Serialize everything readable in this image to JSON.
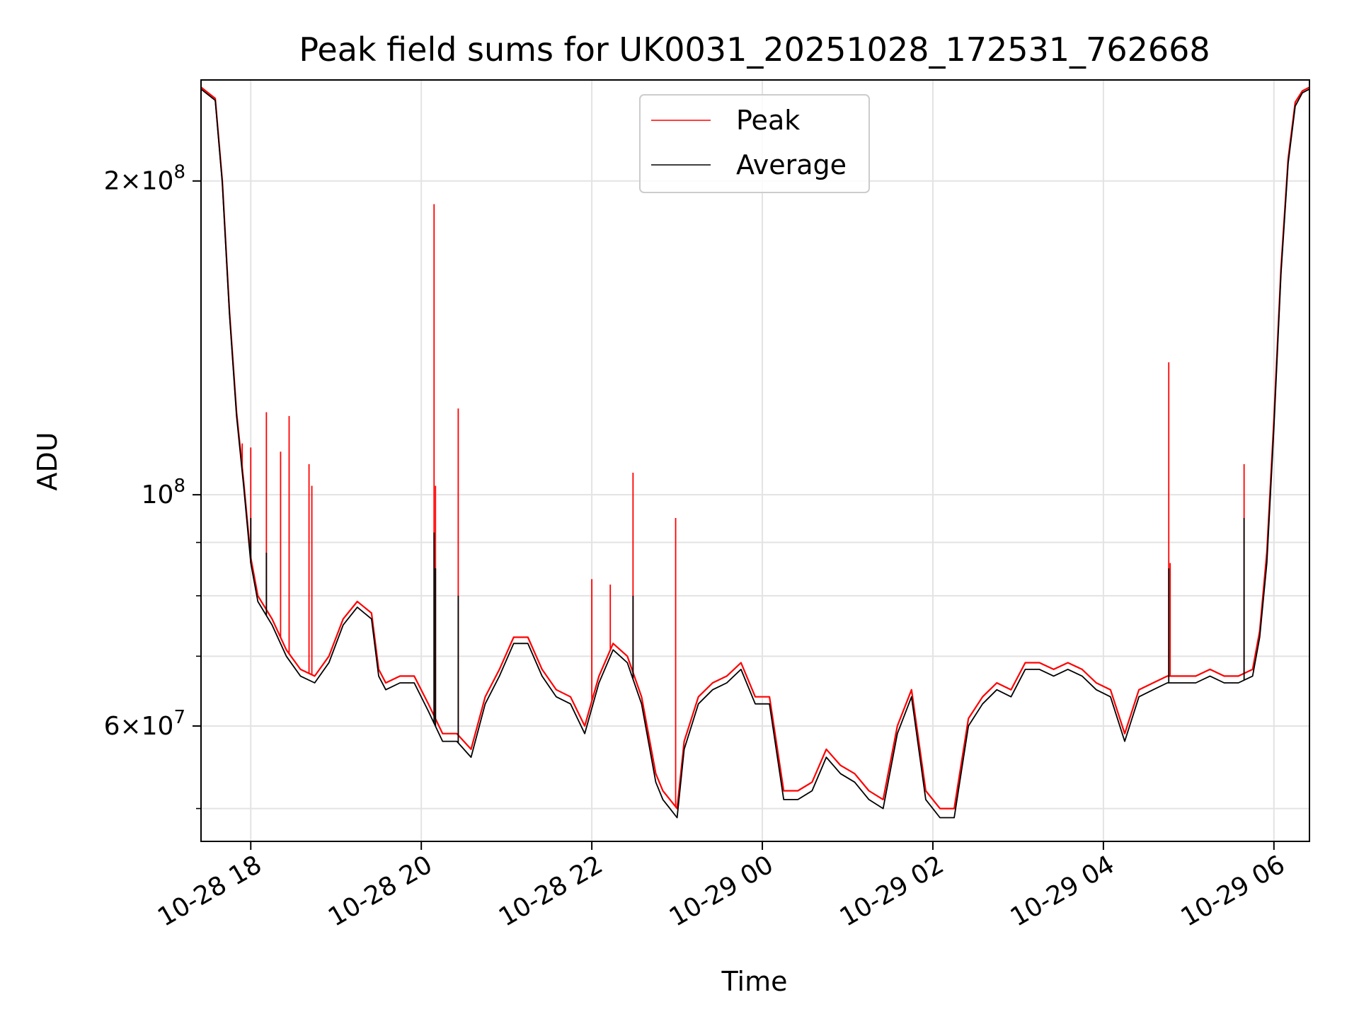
{
  "chart_data": {
    "type": "line",
    "title": "Peak field sums for UK0031_20251028_172531_762668",
    "xlabel": "Time",
    "ylabel": "ADU",
    "yscale": "log",
    "grid": true,
    "legend_placement": "top-center",
    "xlim": [
      "2025-10-28 17:25",
      "2025-10-29 06:25"
    ],
    "ylim": [
      46500000,
      250000000
    ],
    "x_ticks": [
      {
        "value": "2025-10-28 18:00",
        "label": "10-28 18"
      },
      {
        "value": "2025-10-28 20:00",
        "label": "10-28 20"
      },
      {
        "value": "2025-10-28 22:00",
        "label": "10-28 22"
      },
      {
        "value": "2025-10-29 00:00",
        "label": "10-29 00"
      },
      {
        "value": "2025-10-29 02:00",
        "label": "10-29 02"
      },
      {
        "value": "2025-10-29 04:00",
        "label": "10-29 04"
      },
      {
        "value": "2025-10-29 06:00",
        "label": "10-29 06"
      }
    ],
    "y_ticks": [
      {
        "value": 60000000,
        "mantissa": "6",
        "exponent": "7"
      },
      {
        "value": 100000000,
        "mantissa": "",
        "exponent": "8"
      },
      {
        "value": 200000000,
        "mantissa": "2",
        "exponent": "8"
      }
    ],
    "y_minor_ticks": [
      50000000,
      70000000,
      80000000,
      90000000
    ],
    "series": [
      {
        "name": "Peak",
        "color": "#ff0000",
        "x": [
          "2025-10-28 17:25",
          "2025-10-28 17:35",
          "2025-10-28 17:40",
          "2025-10-28 17:45",
          "2025-10-28 17:50",
          "2025-10-28 17:55",
          "2025-10-28 18:00",
          "2025-10-28 18:05",
          "2025-10-28 18:15",
          "2025-10-28 18:25",
          "2025-10-28 18:35",
          "2025-10-28 18:45",
          "2025-10-28 18:55",
          "2025-10-28 19:05",
          "2025-10-28 19:15",
          "2025-10-28 19:25",
          "2025-10-28 19:30",
          "2025-10-28 19:35",
          "2025-10-28 19:45",
          "2025-10-28 19:55",
          "2025-10-28 20:05",
          "2025-10-28 20:15",
          "2025-10-28 20:25",
          "2025-10-28 20:35",
          "2025-10-28 20:45",
          "2025-10-28 20:55",
          "2025-10-28 21:05",
          "2025-10-28 21:15",
          "2025-10-28 21:25",
          "2025-10-28 21:35",
          "2025-10-28 21:45",
          "2025-10-28 21:55",
          "2025-10-28 22:05",
          "2025-10-28 22:15",
          "2025-10-28 22:25",
          "2025-10-28 22:35",
          "2025-10-28 22:45",
          "2025-10-28 22:50",
          "2025-10-28 22:55",
          "2025-10-28 23:00",
          "2025-10-28 23:05",
          "2025-10-28 23:15",
          "2025-10-28 23:25",
          "2025-10-28 23:35",
          "2025-10-28 23:45",
          "2025-10-28 23:55",
          "2025-10-29 00:05",
          "2025-10-29 00:15",
          "2025-10-29 00:25",
          "2025-10-29 00:35",
          "2025-10-29 00:45",
          "2025-10-29 00:55",
          "2025-10-29 01:05",
          "2025-10-29 01:15",
          "2025-10-29 01:25",
          "2025-10-29 01:35",
          "2025-10-29 01:45",
          "2025-10-29 01:55",
          "2025-10-29 02:05",
          "2025-10-29 02:15",
          "2025-10-29 02:25",
          "2025-10-29 02:35",
          "2025-10-29 02:45",
          "2025-10-29 02:55",
          "2025-10-29 03:05",
          "2025-10-29 03:15",
          "2025-10-29 03:25",
          "2025-10-29 03:35",
          "2025-10-29 03:45",
          "2025-10-29 03:55",
          "2025-10-29 04:05",
          "2025-10-29 04:15",
          "2025-10-29 04:25",
          "2025-10-29 04:35",
          "2025-10-29 04:45",
          "2025-10-29 04:55",
          "2025-10-29 05:05",
          "2025-10-29 05:15",
          "2025-10-29 05:25",
          "2025-10-29 05:35",
          "2025-10-29 05:45",
          "2025-10-29 05:50",
          "2025-10-29 05:55",
          "2025-10-29 06:00",
          "2025-10-29 06:05",
          "2025-10-29 06:10",
          "2025-10-29 06:15",
          "2025-10-29 06:20",
          "2025-10-29 06:25"
        ],
        "y": [
          246000000,
          240000000,
          200000000,
          150000000,
          120000000,
          103000000,
          87000000,
          80000000,
          76000000,
          71000000,
          68000000,
          67000000,
          70000000,
          76000000,
          79000000,
          77000000,
          68000000,
          66000000,
          67000000,
          67000000,
          63000000,
          59000000,
          59000000,
          57000000,
          64000000,
          68000000,
          73000000,
          73000000,
          68000000,
          65000000,
          64000000,
          60000000,
          67000000,
          72000000,
          70000000,
          64000000,
          54000000,
          52000000,
          51000000,
          50000000,
          58000000,
          64000000,
          66000000,
          67000000,
          69000000,
          64000000,
          64000000,
          52000000,
          52000000,
          53000000,
          57000000,
          55000000,
          54000000,
          52000000,
          51000000,
          60000000,
          65000000,
          52000000,
          50000000,
          50000000,
          61000000,
          64000000,
          66000000,
          65000000,
          69000000,
          69000000,
          68000000,
          69000000,
          68000000,
          66000000,
          65000000,
          59000000,
          65000000,
          66000000,
          67000000,
          67000000,
          67000000,
          68000000,
          67000000,
          67000000,
          68000000,
          74000000,
          88000000,
          118000000,
          165000000,
          210000000,
          238000000,
          244000000,
          246000000
        ],
        "spikes": [
          {
            "x": "2025-10-28 17:54",
            "y": 112000000
          },
          {
            "x": "2025-10-28 18:00",
            "y": 111000000
          },
          {
            "x": "2025-10-28 18:11",
            "y": 120000000
          },
          {
            "x": "2025-10-28 18:21",
            "y": 110000000
          },
          {
            "x": "2025-10-28 18:27",
            "y": 119000000
          },
          {
            "x": "2025-10-28 18:41",
            "y": 107000000
          },
          {
            "x": "2025-10-28 18:43",
            "y": 102000000
          },
          {
            "x": "2025-10-28 20:09",
            "y": 190000000
          },
          {
            "x": "2025-10-28 20:10",
            "y": 102000000
          },
          {
            "x": "2025-10-28 20:26",
            "y": 121000000
          },
          {
            "x": "2025-10-28 22:00",
            "y": 83000000
          },
          {
            "x": "2025-10-28 22:13",
            "y": 82000000
          },
          {
            "x": "2025-10-28 22:29",
            "y": 105000000
          },
          {
            "x": "2025-10-28 22:59",
            "y": 95000000
          },
          {
            "x": "2025-10-29 04:46",
            "y": 134000000
          },
          {
            "x": "2025-10-29 04:47",
            "y": 86000000
          },
          {
            "x": "2025-10-29 05:39",
            "y": 107000000
          }
        ]
      },
      {
        "name": "Average",
        "color": "#000000",
        "x": [
          "2025-10-28 17:25",
          "2025-10-28 17:35",
          "2025-10-28 17:40",
          "2025-10-28 17:45",
          "2025-10-28 17:50",
          "2025-10-28 17:55",
          "2025-10-28 18:00",
          "2025-10-28 18:05",
          "2025-10-28 18:15",
          "2025-10-28 18:25",
          "2025-10-28 18:35",
          "2025-10-28 18:45",
          "2025-10-28 18:55",
          "2025-10-28 19:05",
          "2025-10-28 19:15",
          "2025-10-28 19:25",
          "2025-10-28 19:30",
          "2025-10-28 19:35",
          "2025-10-28 19:45",
          "2025-10-28 19:55",
          "2025-10-28 20:05",
          "2025-10-28 20:15",
          "2025-10-28 20:25",
          "2025-10-28 20:35",
          "2025-10-28 20:45",
          "2025-10-28 20:55",
          "2025-10-28 21:05",
          "2025-10-28 21:15",
          "2025-10-28 21:25",
          "2025-10-28 21:35",
          "2025-10-28 21:45",
          "2025-10-28 21:55",
          "2025-10-28 22:05",
          "2025-10-28 22:15",
          "2025-10-28 22:25",
          "2025-10-28 22:35",
          "2025-10-28 22:45",
          "2025-10-28 22:50",
          "2025-10-28 22:55",
          "2025-10-28 23:00",
          "2025-10-28 23:05",
          "2025-10-28 23:15",
          "2025-10-28 23:25",
          "2025-10-28 23:35",
          "2025-10-28 23:45",
          "2025-10-28 23:55",
          "2025-10-29 00:05",
          "2025-10-29 00:15",
          "2025-10-29 00:25",
          "2025-10-29 00:35",
          "2025-10-29 00:45",
          "2025-10-29 00:55",
          "2025-10-29 01:05",
          "2025-10-29 01:15",
          "2025-10-29 01:25",
          "2025-10-29 01:35",
          "2025-10-29 01:45",
          "2025-10-29 01:55",
          "2025-10-29 02:05",
          "2025-10-29 02:15",
          "2025-10-29 02:25",
          "2025-10-29 02:35",
          "2025-10-29 02:45",
          "2025-10-29 02:55",
          "2025-10-29 03:05",
          "2025-10-29 03:15",
          "2025-10-29 03:25",
          "2025-10-29 03:35",
          "2025-10-29 03:45",
          "2025-10-29 03:55",
          "2025-10-29 04:05",
          "2025-10-29 04:15",
          "2025-10-29 04:25",
          "2025-10-29 04:35",
          "2025-10-29 04:45",
          "2025-10-29 04:55",
          "2025-10-29 05:05",
          "2025-10-29 05:15",
          "2025-10-29 05:25",
          "2025-10-29 05:35",
          "2025-10-29 05:45",
          "2025-10-29 05:50",
          "2025-10-29 05:55",
          "2025-10-29 06:00",
          "2025-10-29 06:05",
          "2025-10-29 06:10",
          "2025-10-29 06:15",
          "2025-10-29 06:20",
          "2025-10-29 06:25"
        ],
        "y": [
          245000000,
          239000000,
          199000000,
          149000000,
          119000000,
          102000000,
          86000000,
          79000000,
          75000000,
          70000000,
          67000000,
          66000000,
          69000000,
          75000000,
          78000000,
          76000000,
          67000000,
          65000000,
          66000000,
          66000000,
          62000000,
          58000000,
          58000000,
          56000000,
          63000000,
          67000000,
          72000000,
          72000000,
          67000000,
          64000000,
          63000000,
          59000000,
          66000000,
          71000000,
          69000000,
          63000000,
          53000000,
          51000000,
          50000000,
          49000000,
          57000000,
          63000000,
          65000000,
          66000000,
          68000000,
          63000000,
          63000000,
          51000000,
          51000000,
          52000000,
          56000000,
          54000000,
          53000000,
          51000000,
          50000000,
          59000000,
          64000000,
          51000000,
          49000000,
          49000000,
          60000000,
          63000000,
          65000000,
          64000000,
          68000000,
          68000000,
          67000000,
          68000000,
          67000000,
          65000000,
          64000000,
          58000000,
          64000000,
          65000000,
          66000000,
          66000000,
          66000000,
          67000000,
          66000000,
          66000000,
          67000000,
          73000000,
          86000000,
          116000000,
          163000000,
          208000000,
          236000000,
          243000000,
          245000000
        ],
        "spikes": [
          {
            "x": "2025-10-28 18:00",
            "y": 95000000
          },
          {
            "x": "2025-10-28 18:11",
            "y": 88000000
          },
          {
            "x": "2025-10-28 20:09",
            "y": 92000000
          },
          {
            "x": "2025-10-28 20:10",
            "y": 85000000
          },
          {
            "x": "2025-10-28 20:26",
            "y": 80000000
          },
          {
            "x": "2025-10-28 22:29",
            "y": 80000000
          },
          {
            "x": "2025-10-29 04:46",
            "y": 85000000
          },
          {
            "x": "2025-10-29 05:39",
            "y": 95000000
          }
        ]
      }
    ]
  }
}
